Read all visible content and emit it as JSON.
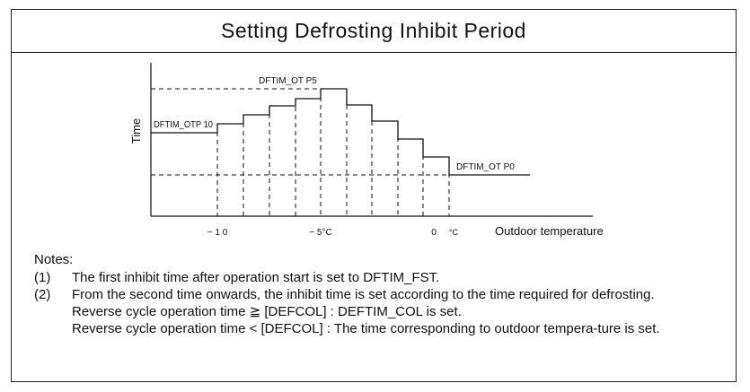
{
  "title": "Setting Defrosting Inhibit Period",
  "diagram": {
    "y_axis_label": "Time",
    "x_axis_label": "Outdoor temperature",
    "ticks": {
      "minus10": "− 1 0",
      "minus5": "− 5°C",
      "zero": "0",
      "unit": "°C"
    },
    "labels": {
      "otp10": "DFTIM_OTP  10",
      "ot_p5": "DFTIM_OT   P5",
      "ot_p0": "DFTIM_OT   P0"
    }
  },
  "notes": {
    "header": "Notes:",
    "items": [
      {
        "num": "(1)",
        "lines": [
          "The first inhibit time after operation start is set to DFTIM_FST."
        ]
      },
      {
        "num": "(2)",
        "lines": [
          "From the second time onwards, the inhibit time is set according to the time required for defrosting.",
          "Reverse cycle operation time ≧ [DEFCOL] : DEFTIM_COL is set.",
          "Reverse cycle operation time < [DEFCOL] : The time corresponding to outdoor tempera-ture is set."
        ]
      }
    ]
  }
}
